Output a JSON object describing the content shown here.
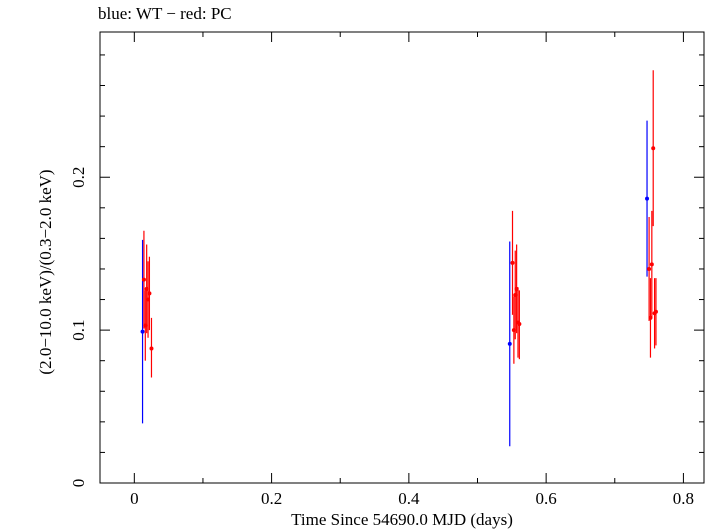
{
  "chart_data": {
    "type": "scatter",
    "title": "blue: WT − red: PC",
    "xlabel": "Time Since 54690.0 MJD (days)",
    "ylabel": "(2.0−10.0 keV)/(0.3−2.0 keV)",
    "xlim": [
      -0.05,
      0.83
    ],
    "ylim": [
      0,
      0.295
    ],
    "xticks": [
      0,
      0.2,
      0.4,
      0.6,
      0.8
    ],
    "xtick_labels": [
      "0",
      "0.2",
      "0.4",
      "0.6",
      "0.8"
    ],
    "yticks": [
      0,
      0.1,
      0.2
    ],
    "ytick_labels": [
      "0",
      "0.1",
      "0.2"
    ],
    "grid": false,
    "series": [
      {
        "name": "WT",
        "color": "#0000ff",
        "points": [
          {
            "x": 0.012,
            "y": 0.099,
            "ylo": 0.039,
            "yhi": 0.159
          },
          {
            "x": 0.547,
            "y": 0.091,
            "ylo": 0.024,
            "yhi": 0.158
          },
          {
            "x": 0.747,
            "y": 0.186,
            "ylo": 0.135,
            "yhi": 0.237
          }
        ]
      },
      {
        "name": "PC",
        "color": "#ff0000",
        "points": [
          {
            "x": 0.014,
            "y": 0.133,
            "ylo": 0.101,
            "yhi": 0.165
          },
          {
            "x": 0.016,
            "y": 0.103,
            "ylo": 0.08,
            "yhi": 0.126
          },
          {
            "x": 0.018,
            "y": 0.127,
            "ylo": 0.098,
            "yhi": 0.156
          },
          {
            "x": 0.02,
            "y": 0.12,
            "ylo": 0.095,
            "yhi": 0.145
          },
          {
            "x": 0.022,
            "y": 0.124,
            "ylo": 0.1,
            "yhi": 0.148
          },
          {
            "x": 0.025,
            "y": 0.088,
            "ylo": 0.069,
            "yhi": 0.108
          },
          {
            "x": 0.551,
            "y": 0.144,
            "ylo": 0.11,
            "yhi": 0.178
          },
          {
            "x": 0.553,
            "y": 0.1,
            "ylo": 0.078,
            "yhi": 0.122
          },
          {
            "x": 0.555,
            "y": 0.123,
            "ylo": 0.094,
            "yhi": 0.152
          },
          {
            "x": 0.557,
            "y": 0.127,
            "ylo": 0.098,
            "yhi": 0.156
          },
          {
            "x": 0.559,
            "y": 0.105,
            "ylo": 0.082,
            "yhi": 0.128
          },
          {
            "x": 0.561,
            "y": 0.104,
            "ylo": 0.081,
            "yhi": 0.126
          },
          {
            "x": 0.75,
            "y": 0.14,
            "ylo": 0.106,
            "yhi": 0.174
          },
          {
            "x": 0.752,
            "y": 0.108,
            "ylo": 0.082,
            "yhi": 0.134
          },
          {
            "x": 0.754,
            "y": 0.143,
            "ylo": 0.108,
            "yhi": 0.178
          },
          {
            "x": 0.756,
            "y": 0.219,
            "ylo": 0.168,
            "yhi": 0.27
          },
          {
            "x": 0.758,
            "y": 0.111,
            "ylo": 0.088,
            "yhi": 0.134
          },
          {
            "x": 0.76,
            "y": 0.112,
            "ylo": 0.09,
            "yhi": 0.134
          }
        ]
      }
    ]
  }
}
